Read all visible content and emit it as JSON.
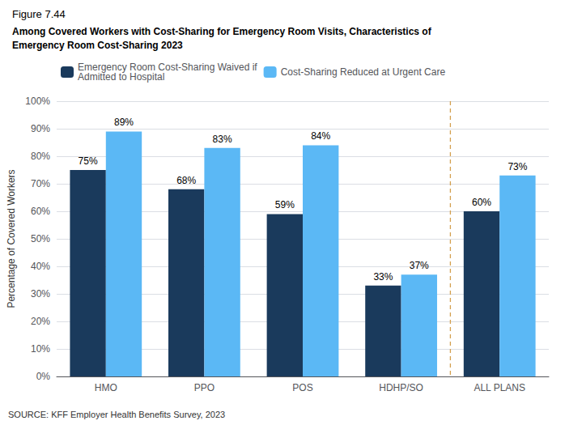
{
  "chart_data": {
    "type": "bar",
    "title": "Figure 7.44",
    "subtitle": "Among Covered Workers with Cost-Sharing for Emergency Room Visits, Characteristics of\nEmergency Room Cost-Sharing 2023",
    "categories": [
      "HMO",
      "PPO",
      "POS",
      "HDHP/SO",
      "ALL PLANS"
    ],
    "series": [
      {
        "name": "Emergency Room Cost-Sharing Waived if\nAdmitted to Hospital",
        "color": "#1a3a5c",
        "values": [
          75,
          68,
          59,
          33,
          60
        ],
        "value_labels": [
          "75%",
          "68%",
          "59%",
          "33%",
          "60%"
        ]
      },
      {
        "name": "Cost-Sharing Reduced at Urgent Care",
        "color": "#5bb8f5",
        "values": [
          89,
          83,
          84,
          37,
          73
        ],
        "value_labels": [
          "89%",
          "83%",
          "84%",
          "37%",
          "73%"
        ]
      }
    ],
    "ylabel": "Percentage of Covered Workers",
    "ylim": [
      0,
      100
    ],
    "yticks": [
      {
        "value": 0,
        "label": "0%"
      },
      {
        "value": 10,
        "label": "10%"
      },
      {
        "value": 20,
        "label": "20%"
      },
      {
        "value": 30,
        "label": "30%"
      },
      {
        "value": 40,
        "label": "40%"
      },
      {
        "value": 50,
        "label": "50%"
      },
      {
        "value": 60,
        "label": "60%"
      },
      {
        "value": 70,
        "label": "70%"
      },
      {
        "value": 80,
        "label": "80%"
      },
      {
        "value": 90,
        "label": "90%"
      },
      {
        "value": 100,
        "label": "100%"
      }
    ],
    "grid": true,
    "legend": "upper left",
    "data_labels": true,
    "annotations": [
      "SOURCE: KFF Employer Health Benefits Survey, 2023"
    ]
  }
}
